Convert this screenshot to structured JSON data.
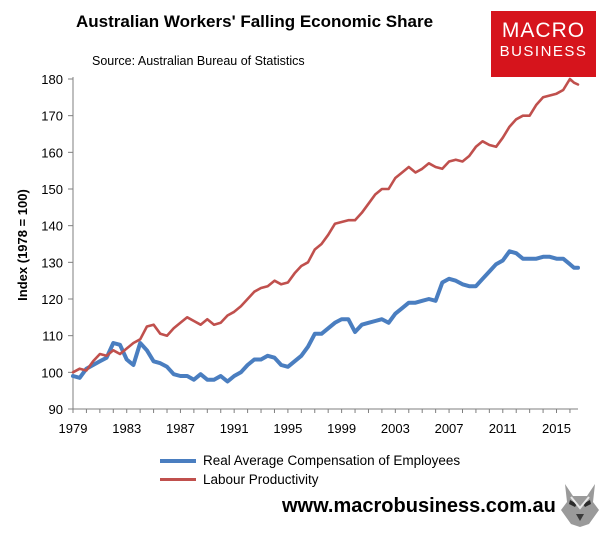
{
  "header": {
    "title": "Australian Workers' Falling Economic Share",
    "source": "Source: Australian Bureau of Statistics"
  },
  "logo": {
    "line1": "MACRO",
    "line2": "BUSINESS",
    "color": "#d6141c"
  },
  "footer": {
    "url": "www.macrobusiness.com.au"
  },
  "chart_data": {
    "type": "line",
    "title": "Australian Workers' Falling Economic Share",
    "xlabel": "",
    "ylabel": "Index (1978 = 100)",
    "xlim": [
      1979,
      2016.6
    ],
    "ylim": [
      90,
      180
    ],
    "yticks": [
      90,
      100,
      110,
      120,
      130,
      140,
      150,
      160,
      170,
      180
    ],
    "xticks": [
      1979,
      1983,
      1987,
      1991,
      1995,
      1999,
      2003,
      2007,
      2011,
      2015
    ],
    "grid": false,
    "legend_position": "bottom",
    "series": [
      {
        "name": "Real Average Compensation of Employees",
        "color": "#4a7ec0",
        "points": [
          [
            1979,
            99
          ],
          [
            1979.5,
            98.5
          ],
          [
            1980,
            101
          ],
          [
            1980.5,
            102
          ],
          [
            1981,
            103
          ],
          [
            1981.5,
            104
          ],
          [
            1982,
            108
          ],
          [
            1982.5,
            107.5
          ],
          [
            1983,
            103.5
          ],
          [
            1983.5,
            102
          ],
          [
            1984,
            108
          ],
          [
            1984.5,
            106
          ],
          [
            1985,
            103
          ],
          [
            1985.5,
            102.5
          ],
          [
            1986,
            101.5
          ],
          [
            1986.5,
            99.5
          ],
          [
            1987,
            99
          ],
          [
            1987.5,
            99
          ],
          [
            1988,
            98
          ],
          [
            1988.5,
            99.5
          ],
          [
            1989,
            98
          ],
          [
            1989.5,
            98
          ],
          [
            1990,
            99
          ],
          [
            1990.5,
            97.5
          ],
          [
            1991,
            99
          ],
          [
            1991.5,
            100
          ],
          [
            1992,
            102
          ],
          [
            1992.5,
            103.5
          ],
          [
            1993,
            103.5
          ],
          [
            1993.5,
            104.5
          ],
          [
            1994,
            104
          ],
          [
            1994.5,
            102
          ],
          [
            1995,
            101.5
          ],
          [
            1995.5,
            103
          ],
          [
            1996,
            104.5
          ],
          [
            1996.5,
            107
          ],
          [
            1997,
            110.5
          ],
          [
            1997.5,
            110.5
          ],
          [
            1998,
            112
          ],
          [
            1998.5,
            113.5
          ],
          [
            1999,
            114.5
          ],
          [
            1999.5,
            114.5
          ],
          [
            2000,
            111
          ],
          [
            2000.5,
            113
          ],
          [
            2001,
            113.5
          ],
          [
            2001.5,
            114
          ],
          [
            2002,
            114.5
          ],
          [
            2002.5,
            113.5
          ],
          [
            2003,
            116
          ],
          [
            2003.5,
            117.5
          ],
          [
            2004,
            119
          ],
          [
            2004.5,
            119
          ],
          [
            2005,
            119.5
          ],
          [
            2005.5,
            120
          ],
          [
            2006,
            119.5
          ],
          [
            2006.5,
            124.5
          ],
          [
            2007,
            125.5
          ],
          [
            2007.5,
            125
          ],
          [
            2008,
            124
          ],
          [
            2008.5,
            123.5
          ],
          [
            2009,
            123.5
          ],
          [
            2009.5,
            125.5
          ],
          [
            2010,
            127.5
          ],
          [
            2010.5,
            129.5
          ],
          [
            2011,
            130.5
          ],
          [
            2011.5,
            133
          ],
          [
            2012,
            132.5
          ],
          [
            2012.5,
            131
          ],
          [
            2013,
            131
          ],
          [
            2013.5,
            131
          ],
          [
            2014,
            131.5
          ],
          [
            2014.5,
            131.5
          ],
          [
            2015,
            131
          ],
          [
            2015.5,
            131
          ],
          [
            2016,
            129.5
          ],
          [
            2016.3,
            128.5
          ],
          [
            2016.6,
            128.5
          ]
        ]
      },
      {
        "name": "Labour Productivity",
        "color": "#c0504d",
        "points": [
          [
            1979,
            100
          ],
          [
            1979.5,
            101
          ],
          [
            1980,
            100.5
          ],
          [
            1980.5,
            103
          ],
          [
            1981,
            105
          ],
          [
            1981.5,
            104.5
          ],
          [
            1982,
            106
          ],
          [
            1982.5,
            105
          ],
          [
            1983,
            106.5
          ],
          [
            1983.5,
            108
          ],
          [
            1984,
            109
          ],
          [
            1984.5,
            112.5
          ],
          [
            1985,
            113
          ],
          [
            1985.5,
            110.5
          ],
          [
            1986,
            110
          ],
          [
            1986.5,
            112
          ],
          [
            1987,
            113.5
          ],
          [
            1987.5,
            115
          ],
          [
            1988,
            114
          ],
          [
            1988.5,
            113
          ],
          [
            1989,
            114.5
          ],
          [
            1989.5,
            113
          ],
          [
            1990,
            113.5
          ],
          [
            1990.5,
            115.5
          ],
          [
            1991,
            116.5
          ],
          [
            1991.5,
            118
          ],
          [
            1992,
            120
          ],
          [
            1992.5,
            122
          ],
          [
            1993,
            123
          ],
          [
            1993.5,
            123.5
          ],
          [
            1994,
            125
          ],
          [
            1994.5,
            124
          ],
          [
            1995,
            124.5
          ],
          [
            1995.5,
            127
          ],
          [
            1996,
            129
          ],
          [
            1996.5,
            130
          ],
          [
            1997,
            133.5
          ],
          [
            1997.5,
            135
          ],
          [
            1998,
            137.5
          ],
          [
            1998.5,
            140.5
          ],
          [
            1999,
            141
          ],
          [
            1999.5,
            141.5
          ],
          [
            2000,
            141.5
          ],
          [
            2000.5,
            143.5
          ],
          [
            2001,
            146
          ],
          [
            2001.5,
            148.5
          ],
          [
            2002,
            150
          ],
          [
            2002.5,
            150
          ],
          [
            2003,
            153
          ],
          [
            2003.5,
            154.5
          ],
          [
            2004,
            156
          ],
          [
            2004.5,
            154.5
          ],
          [
            2005,
            155.5
          ],
          [
            2005.5,
            157
          ],
          [
            2006,
            156
          ],
          [
            2006.5,
            155.5
          ],
          [
            2007,
            157.5
          ],
          [
            2007.5,
            158
          ],
          [
            2008,
            157.5
          ],
          [
            2008.5,
            159
          ],
          [
            2009,
            161.5
          ],
          [
            2009.5,
            163
          ],
          [
            2010,
            162
          ],
          [
            2010.5,
            161.5
          ],
          [
            2011,
            164
          ],
          [
            2011.5,
            167
          ],
          [
            2012,
            169
          ],
          [
            2012.5,
            170
          ],
          [
            2013,
            170
          ],
          [
            2013.5,
            173
          ],
          [
            2014,
            175
          ],
          [
            2014.5,
            175.5
          ],
          [
            2015,
            176
          ],
          [
            2015.5,
            177
          ],
          [
            2016,
            180
          ],
          [
            2016.3,
            179
          ],
          [
            2016.6,
            178.5
          ]
        ]
      }
    ]
  }
}
